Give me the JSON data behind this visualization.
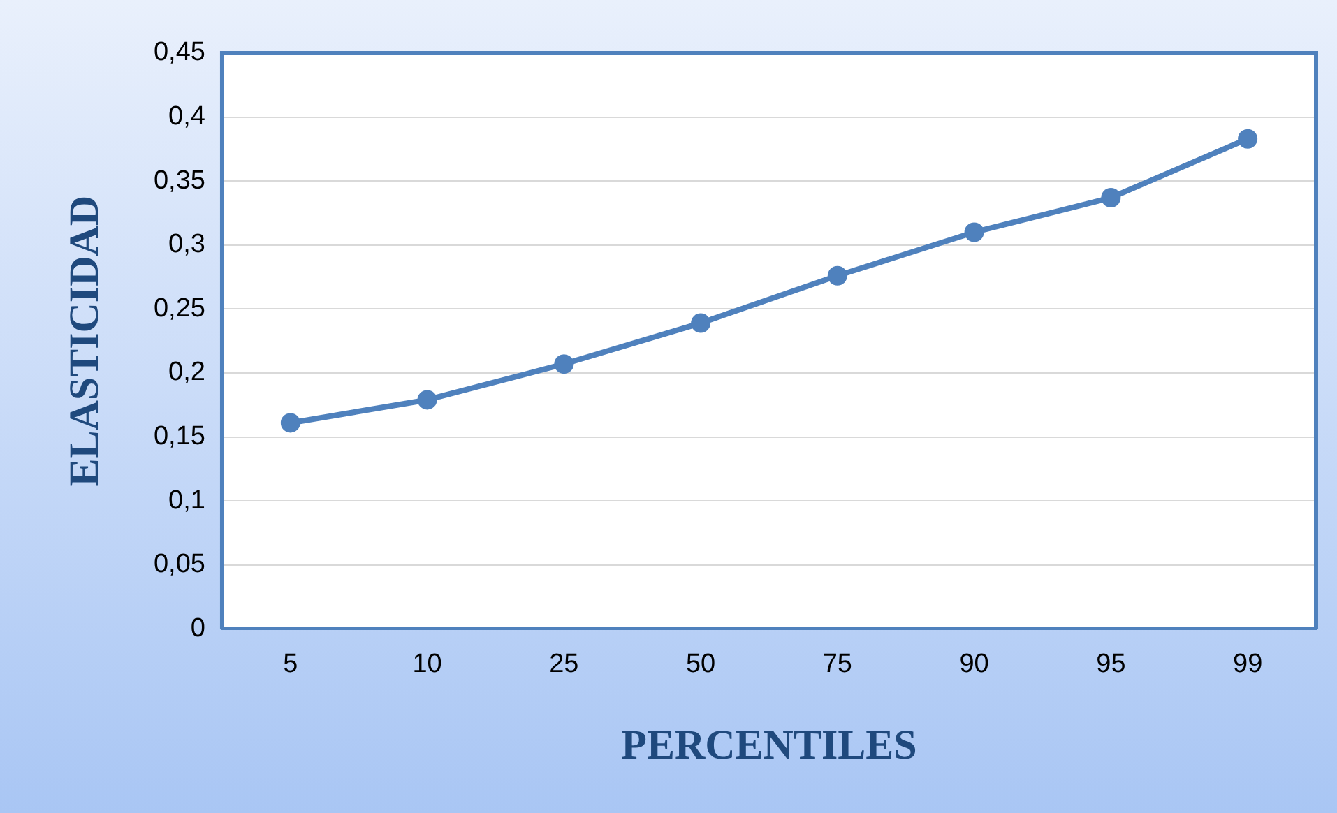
{
  "chart_data": {
    "type": "line",
    "xlabel": "PERCENTILES",
    "ylabel": "ELASTICIDAD",
    "categories": [
      "5",
      "10",
      "25",
      "50",
      "75",
      "90",
      "95",
      "99"
    ],
    "series": [
      {
        "color": "#4f81bd",
        "values": [
          0.161,
          0.179,
          0.207,
          0.239,
          0.276,
          0.31,
          0.337,
          0.383
        ]
      }
    ],
    "ylim": [
      0,
      0.45
    ],
    "yticks": [
      0,
      {
        "value": 0.05,
        "label": "0,05"
      },
      {
        "value": 0.1,
        "label": "0,1"
      },
      {
        "value": 0.15,
        "label": "0,15"
      },
      {
        "value": 0.2,
        "label": "0,2"
      },
      {
        "value": 0.25,
        "label": "0,25"
      },
      {
        "value": 0.3,
        "label": "0,3"
      },
      {
        "value": 0.35,
        "label": "0,35"
      },
      {
        "value": 0.4,
        "label": "0,4"
      },
      {
        "value": 0.45,
        "label": "0,45"
      }
    ],
    "grid": "y",
    "legend": false,
    "marker": "circle",
    "line_style": "solid"
  }
}
